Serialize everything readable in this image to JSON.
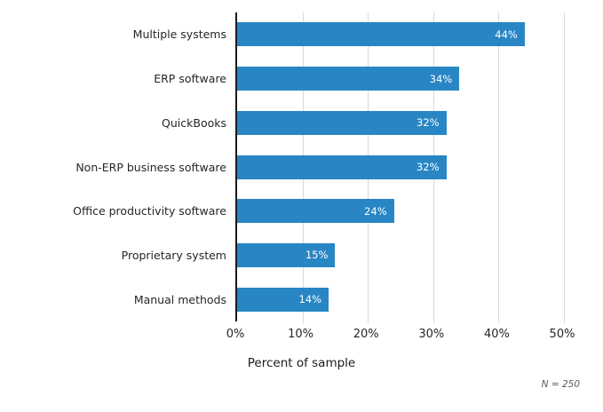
{
  "chart_data": {
    "type": "bar",
    "orientation": "horizontal",
    "categories": [
      "Multiple systems",
      "ERP software",
      "QuickBooks",
      "Non-ERP business software",
      "Office productivity software",
      "Proprietary system",
      "Manual methods"
    ],
    "values": [
      44,
      34,
      32,
      32,
      24,
      15,
      14
    ],
    "value_labels": [
      "44%",
      "34%",
      "32%",
      "32%",
      "24%",
      "15%",
      "14%"
    ],
    "xlabel": "Percent of sample",
    "xlim": [
      0,
      50
    ],
    "xtick_values": [
      0,
      10,
      20,
      30,
      40,
      50
    ],
    "xtick_labels": [
      "0%",
      "10%",
      "20%",
      "30%",
      "40%",
      "50%"
    ],
    "note": "N = 250",
    "bar_color": "#2986c4",
    "grid": "vertical",
    "legend": "none",
    "title": ""
  }
}
